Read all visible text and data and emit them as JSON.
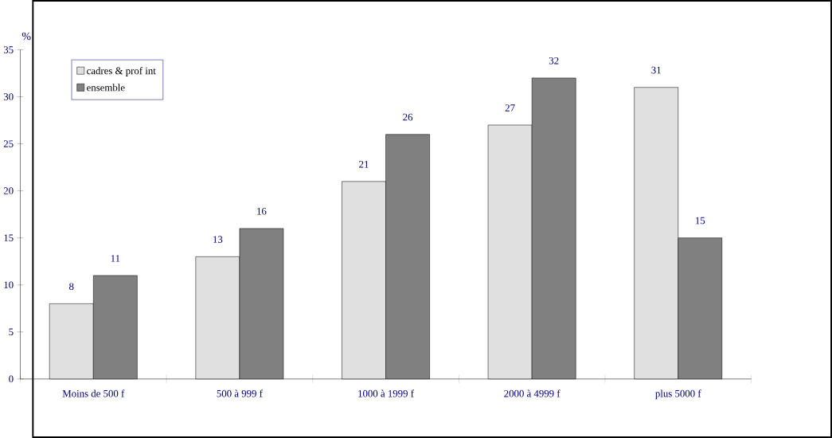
{
  "chart_data": {
    "type": "bar",
    "ylabel": "%",
    "categories": [
      "Moins de 500 f",
      "500 à 999 f",
      "1000 à 1999 f",
      "2000 à 4999 f",
      "plus 5000 f"
    ],
    "series": [
      {
        "name": "cadres & prof int",
        "color": "#e0e0e0",
        "values": [
          8,
          13,
          21,
          27,
          31
        ]
      },
      {
        "name": "ensemble",
        "color": "#808080",
        "values": [
          11,
          16,
          26,
          32,
          15
        ]
      }
    ],
    "ylim": [
      0,
      35
    ],
    "yticks": [
      0,
      5,
      10,
      15,
      20,
      25,
      30,
      35
    ],
    "data_labels": true,
    "legend": "top left",
    "grid": false
  }
}
